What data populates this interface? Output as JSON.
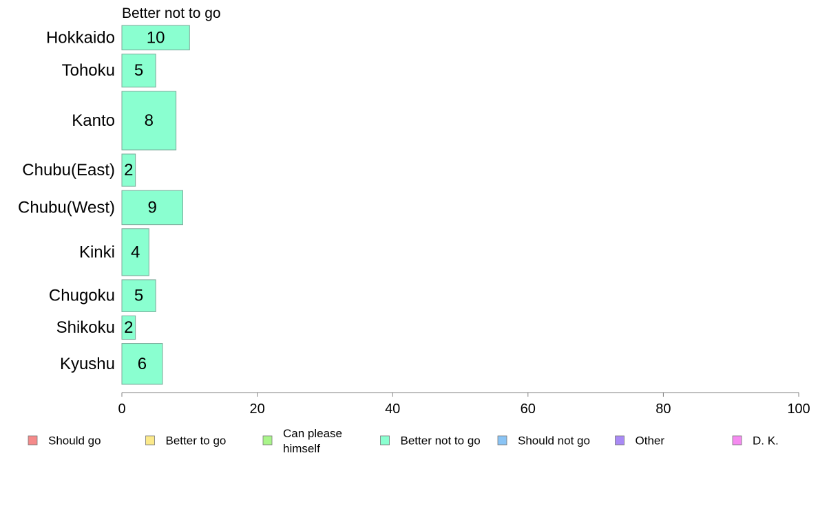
{
  "chart_data": {
    "type": "bar",
    "orientation": "horizontal",
    "title": "Better not to go",
    "categories": [
      "Hokkaido",
      "Tohoku",
      "Kanto",
      "Chubu(East)",
      "Chubu(West)",
      "Kinki",
      "Chugoku",
      "Shikoku",
      "Kyushu"
    ],
    "relative_bar_heights": [
      0.69,
      0.93,
      1.65,
      0.91,
      0.96,
      1.32,
      0.9,
      0.66,
      1.15
    ],
    "series": [
      {
        "name": "Better not to go",
        "values": [
          10,
          5,
          8,
          2,
          9,
          4,
          5,
          2,
          6
        ],
        "color": "#8affd0"
      }
    ],
    "xlim": [
      0,
      100
    ],
    "xticks": [
      0,
      20,
      40,
      60,
      80,
      100
    ],
    "xlabel": "",
    "ylabel": "",
    "grid": false,
    "legend_position": "bottom",
    "legend": [
      {
        "label": "Should go",
        "color": "#f58a8a"
      },
      {
        "label": "Better to go",
        "color": "#fbe98a"
      },
      {
        "label": "Can please himself",
        "lines": [
          "Can please",
          "himself"
        ],
        "color": "#a9f58a"
      },
      {
        "label": "Better not to go",
        "color": "#8affd0"
      },
      {
        "label": "Should not go",
        "color": "#8ac4f5"
      },
      {
        "label": "Other",
        "color": "#a98af5"
      },
      {
        "label": "D. K.",
        "color": "#f58af0"
      }
    ]
  }
}
